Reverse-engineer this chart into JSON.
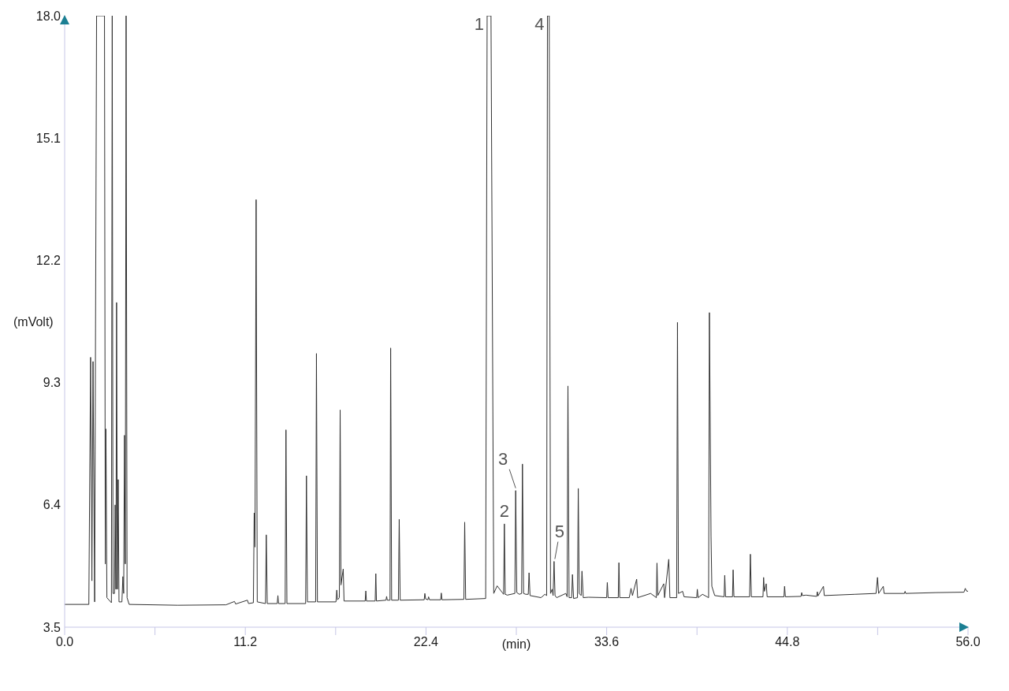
{
  "chart_data": {
    "type": "line",
    "xlabel": "(min)",
    "ylabel": "(mVolt)",
    "xlim": [
      0,
      56
    ],
    "xticks": [
      {
        "value": 0,
        "label": "0.0"
      },
      {
        "value": 5.6,
        "label": null
      },
      11.2,
      {
        "value": 16.8,
        "label": null
      },
      22.4,
      {
        "value": 28,
        "label": null
      },
      33.6,
      {
        "value": 39.2,
        "label": null
      },
      44.8,
      {
        "value": 50.4,
        "label": null
      },
      {
        "value": 56,
        "label": "56.0"
      }
    ],
    "ylim": [
      3.5,
      18
    ],
    "yticks": [
      3.5,
      6.4,
      9.3,
      12.2,
      15.1,
      {
        "value": 18,
        "label": "18.0"
      }
    ],
    "x": [
      0,
      1.5,
      1.61,
      1.69,
      1.76,
      1.86,
      1.98,
      2.47,
      2.52,
      2.56,
      2.62,
      2.9,
      2.95,
      3.0,
      3.09,
      3.13,
      3.18,
      3.22,
      3.27,
      3.32,
      3.37,
      3.55,
      3.61,
      3.66,
      3.71,
      3.76,
      3.81,
      3.87,
      4.0,
      7.0,
      10.0,
      10.53,
      10.6,
      11.33,
      11.4,
      11.7,
      11.75,
      11.8,
      11.87,
      11.94,
      12.45,
      12.5,
      12.56,
      13.18,
      13.22,
      13.26,
      13.67,
      13.72,
      13.78,
      14.94,
      14.99,
      15.05,
      15.56,
      15.61,
      15.67,
      16.82,
      16.87,
      16.92,
      17.03,
      17.08,
      17.13,
      17.27,
      17.32,
      18.63,
      18.67,
      18.71,
      19.25,
      19.29,
      19.33,
      19.92,
      19.96,
      20.0,
      20.17,
      20.21,
      20.27,
      20.69,
      20.74,
      20.8,
      22.29,
      22.33,
      22.38,
      22.52,
      22.56,
      22.62,
      23.31,
      23.35,
      23.39,
      24.75,
      24.8,
      24.86,
      26.1,
      26.19,
      26.43,
      26.6,
      26.81,
      27.15,
      27.21,
      27.26,
      27.31,
      27.44,
      27.91,
      27.96,
      28.03,
      28.19,
      28.33,
      28.38,
      28.45,
      28.58,
      28.74,
      28.79,
      28.85,
      29.53,
      29.77,
      29.88,
      29.93,
      30.04,
      30.12,
      30.22,
      30.28,
      30.34,
      30.4,
      30.5,
      31.07,
      31.15,
      31.2,
      31.27,
      31.43,
      31.48,
      31.55,
      31.79,
      31.84,
      31.9,
      32.02,
      32.07,
      32.15,
      32.46,
      33.6,
      33.64,
      33.69,
      34.32,
      34.36,
      34.41,
      35.0,
      35.11,
      35.2,
      35.46,
      35.52,
      36.33,
      36.68,
      36.72,
      36.77,
      37.14,
      37.19,
      37.45,
      37.52,
      37.94,
      37.99,
      38.05,
      38.31,
      38.4,
      39.18,
      39.22,
      39.27,
      39.54,
      39.92,
      39.97,
      40.07,
      40.12,
      40.3,
      40.88,
      40.92,
      40.97,
      41.4,
      41.44,
      41.49,
      42.46,
      42.51,
      42.57,
      43.29,
      43.33,
      43.38,
      43.49,
      43.55,
      44.59,
      44.63,
      44.68,
      45.65,
      45.69,
      45.73,
      45.96,
      46.62,
      46.66,
      46.7,
      47.04,
      47.09,
      49.0,
      50.3,
      50.39,
      50.46,
      50.75,
      50.8,
      52.06,
      52.1,
      52.14,
      54.0,
      55.75,
      55.83,
      55.9,
      56.0
    ],
    "series": [
      {
        "color": "#333333",
        "values": [
          4.04,
          4.04,
          9.9,
          4.6,
          9.8,
          4.1,
          18,
          18,
          5.0,
          8.2,
          4.2,
          4.08,
          18,
          4.3,
          4.3,
          6.4,
          4.4,
          11.2,
          4.4,
          7.0,
          4.1,
          4.1,
          4.7,
          4.3,
          8.05,
          5.0,
          18,
          4.2,
          4.04,
          4.02,
          4.03,
          4.11,
          4.05,
          4.14,
          4.06,
          4.08,
          6.21,
          5.4,
          13.64,
          4.1,
          4.06,
          5.69,
          4.06,
          4.06,
          4.25,
          4.06,
          4.06,
          8.18,
          4.06,
          4.06,
          7.09,
          4.1,
          4.1,
          9.99,
          4.1,
          4.1,
          4.38,
          4.15,
          4.2,
          8.65,
          4.5,
          4.88,
          4.12,
          4.12,
          4.36,
          4.12,
          4.12,
          4.77,
          4.12,
          4.14,
          4.23,
          4.14,
          4.14,
          10.12,
          4.14,
          4.14,
          6.06,
          4.14,
          4.15,
          4.3,
          4.17,
          4.15,
          4.22,
          4.15,
          4.15,
          4.31,
          4.15,
          4.16,
          5.99,
          4.16,
          4.18,
          18,
          18,
          4.3,
          4.48,
          4.31,
          4.28,
          5.95,
          4.28,
          4.26,
          4.3,
          6.74,
          4.32,
          4.28,
          4.3,
          7.37,
          4.3,
          4.28,
          4.28,
          4.79,
          4.25,
          4.2,
          4.28,
          4.25,
          18,
          18,
          4.3,
          4.4,
          4.25,
          5.06,
          4.25,
          4.2,
          4.3,
          4.22,
          9.22,
          4.2,
          4.2,
          4.75,
          4.18,
          4.2,
          6.79,
          4.3,
          4.25,
          4.83,
          4.2,
          4.21,
          4.2,
          4.56,
          4.2,
          4.2,
          5.03,
          4.2,
          4.2,
          4.42,
          4.25,
          4.64,
          4.2,
          4.3,
          4.2,
          5.02,
          4.25,
          4.53,
          4.2,
          5.11,
          4.2,
          4.2,
          10.73,
          4.3,
          4.35,
          4.22,
          4.2,
          4.4,
          4.2,
          4.28,
          4.2,
          10.96,
          5.65,
          4.47,
          4.25,
          4.22,
          4.73,
          4.22,
          4.22,
          4.86,
          4.22,
          4.22,
          5.23,
          4.22,
          4.22,
          4.68,
          4.35,
          4.53,
          4.22,
          4.22,
          4.47,
          4.22,
          4.23,
          4.32,
          4.25,
          4.26,
          4.23,
          4.34,
          4.24,
          4.47,
          4.25,
          4.28,
          4.3,
          4.68,
          4.3,
          4.47,
          4.3,
          4.3,
          4.35,
          4.3,
          4.32,
          4.33,
          4.42,
          4.36,
          4.35
        ]
      }
    ],
    "annotations": [
      {
        "text": "1",
        "x": 26.19,
        "y": 18
      },
      {
        "text": "2",
        "x": 27.26,
        "y": 5.95
      },
      {
        "text": "3",
        "x": 27.96,
        "y": 6.74
      },
      {
        "text": "4",
        "x": 29.93,
        "y": 18
      },
      {
        "text": "5",
        "x": 30.34,
        "y": 5.06
      }
    ]
  }
}
